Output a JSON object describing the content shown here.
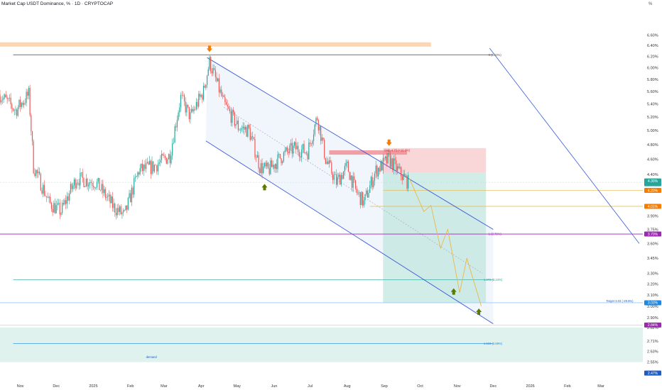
{
  "header": {
    "title": "Market Cap USDT Dominance, % · 1D · CRYPTOCAP",
    "scale_label": "%"
  },
  "colors": {
    "up": "#26a69a",
    "down": "#ef5350",
    "channel": "#3a5bd9",
    "fib": "#444444",
    "purple": "#9c27b0",
    "teal": "#26a69a",
    "orange": "#f57c00",
    "olive": "#5b7a00",
    "blue_line": "#1e88e5",
    "path": "#e8b84a"
  },
  "chart_data": {
    "type": "candlestick",
    "title": "Market Cap USDT Dominance, % · 1D · CRYPTOCAP",
    "y_axis_scale": "log",
    "ylim": [
      2.44,
      6.7
    ],
    "xlim": [
      "2024-10-15",
      "2026-04-05"
    ],
    "grid": false,
    "x_tick_labels": [
      {
        "label": "Nov",
        "date": "2024-11-01"
      },
      {
        "label": "Dec",
        "date": "2024-12-01"
      },
      {
        "label": "2025",
        "date": "2025-01-01"
      },
      {
        "label": "Feb",
        "date": "2025-02-01"
      },
      {
        "label": "Mar",
        "date": "2025-03-01"
      },
      {
        "label": "Apr",
        "date": "2025-04-01"
      },
      {
        "label": "May",
        "date": "2025-05-01"
      },
      {
        "label": "Jun",
        "date": "2025-06-01"
      },
      {
        "label": "Jul",
        "date": "2025-07-01"
      },
      {
        "label": "Aug",
        "date": "2025-08-01"
      },
      {
        "label": "Sep",
        "date": "2025-09-01"
      },
      {
        "label": "Oct",
        "date": "2025-10-01"
      },
      {
        "label": "Nov",
        "date": "2025-11-01"
      },
      {
        "label": "Dec",
        "date": "2025-12-01"
      },
      {
        "label": "2026",
        "date": "2026-01-01"
      },
      {
        "label": "Feb",
        "date": "2026-02-01"
      },
      {
        "label": "Mar",
        "date": "2026-03-01"
      }
    ],
    "y_tick_labels": [
      "6.60%",
      "6.40%",
      "6.20%",
      "6.00%",
      "5.80%",
      "5.60%",
      "5.40%",
      "5.20%",
      "5.00%",
      "4.80%",
      "4.60%",
      "4.40%",
      "3.90%",
      "3.75%",
      "3.60%",
      "3.45%",
      "3.30%",
      "3.20%",
      "3.10%",
      "3.00%",
      "2.90%",
      "2.82%",
      "2.71%",
      "2.63%",
      "2.55%"
    ],
    "ohlc_keypoints": [
      {
        "date": "2024-10-15",
        "close": 5.55
      },
      {
        "date": "2024-10-28",
        "close": 5.3
      },
      {
        "date": "2024-11-08",
        "close": 5.55
      },
      {
        "date": "2024-11-12",
        "close": 4.5
      },
      {
        "date": "2024-11-25",
        "close": 4.05
      },
      {
        "date": "2024-12-05",
        "close": 3.95
      },
      {
        "date": "2024-12-18",
        "close": 4.35
      },
      {
        "date": "2025-01-03",
        "close": 4.3
      },
      {
        "date": "2025-01-18",
        "close": 4.0
      },
      {
        "date": "2025-01-27",
        "close": 3.9
      },
      {
        "date": "2025-02-08",
        "close": 4.45
      },
      {
        "date": "2025-02-20",
        "close": 4.5
      },
      {
        "date": "2025-03-06",
        "close": 4.65
      },
      {
        "date": "2025-03-15",
        "close": 5.5
      },
      {
        "date": "2025-03-23",
        "close": 5.2
      },
      {
        "date": "2025-04-03",
        "close": 5.6
      },
      {
        "date": "2025-04-08",
        "close": 6.1
      },
      {
        "date": "2025-04-20",
        "close": 5.4
      },
      {
        "date": "2025-05-02",
        "close": 5.05
      },
      {
        "date": "2025-05-11",
        "close": 5.0
      },
      {
        "date": "2025-05-20",
        "close": 4.5
      },
      {
        "date": "2025-05-27",
        "close": 4.45
      },
      {
        "date": "2025-06-08",
        "close": 4.65
      },
      {
        "date": "2025-06-18",
        "close": 4.75
      },
      {
        "date": "2025-06-29",
        "close": 4.7
      },
      {
        "date": "2025-07-07",
        "close": 5.2
      },
      {
        "date": "2025-07-14",
        "close": 4.6
      },
      {
        "date": "2025-07-23",
        "close": 4.3
      },
      {
        "date": "2025-08-01",
        "close": 4.5
      },
      {
        "date": "2025-08-08",
        "close": 4.2
      },
      {
        "date": "2025-08-15",
        "close": 4.05
      },
      {
        "date": "2025-08-25",
        "close": 4.45
      },
      {
        "date": "2025-09-05",
        "close": 4.6
      },
      {
        "date": "2025-09-14",
        "close": 4.42
      },
      {
        "date": "2025-09-21",
        "close": 4.3
      }
    ],
    "current_price": 4.3,
    "price_labels": [
      "4.30%",
      "4.20%",
      "4.01%",
      "3.70%",
      "3.03%",
      "2.84%",
      "2.47%"
    ],
    "annotations": {
      "fib_0": "0 (6.23%)",
      "fib_1": "1 (3.70%)",
      "fib_1272": "1.272 (3.24%)",
      "fib_1618": "1.618 (2.69%)",
      "stop_label": "Stop 4.75 (+10.3%)",
      "target_label": "Target 3.03 (-29.6%)",
      "zone_label": "demand"
    }
  }
}
